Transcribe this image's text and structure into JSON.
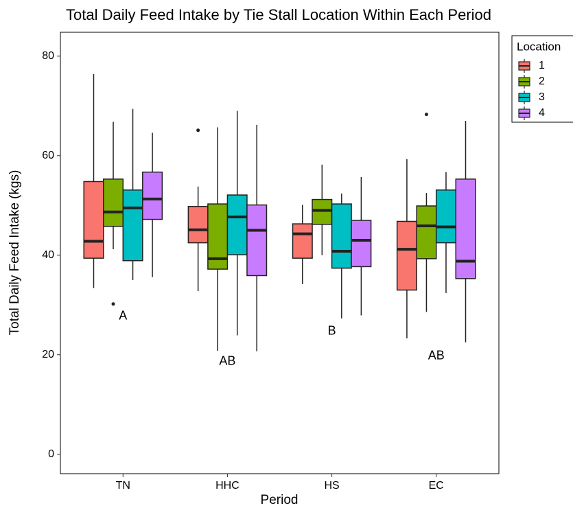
{
  "chart_data": {
    "type": "boxplot",
    "title": "Total Daily Feed Intake by Tie Stall Location Within Each Period",
    "x_label": "Period",
    "y_label": "Total Daily Feed Intake (kgs)",
    "legend_title": "Location",
    "legend_position": "right",
    "categories": [
      "TN",
      "HHC",
      "HS",
      "EC"
    ],
    "ylim": [
      -3.9,
      84.8
    ],
    "yticks": [
      0,
      20,
      40,
      60,
      80
    ],
    "grid": false,
    "series": [
      {
        "name": "1",
        "color": "#F8766D",
        "min": [
          33.4,
          32.8,
          34.2,
          23.3
        ],
        "q1": [
          39.4,
          42.5,
          39.4,
          33.0
        ],
        "median": [
          42.8,
          45.1,
          44.3,
          41.2
        ],
        "q3": [
          54.8,
          49.8,
          46.3,
          46.8
        ],
        "max": [
          76.4,
          53.8,
          50.1,
          59.3
        ],
        "outliers": [
          {
            "x": "HHC",
            "y": 65.1
          }
        ]
      },
      {
        "name": "2",
        "color": "#7CAE00",
        "min": [
          41.2,
          20.8,
          40.0,
          28.6
        ],
        "q1": [
          45.8,
          37.2,
          46.2,
          39.3
        ],
        "median": [
          48.7,
          39.3,
          49.0,
          45.9
        ],
        "q3": [
          55.3,
          50.3,
          51.2,
          49.9
        ],
        "max": [
          66.8,
          65.7,
          58.2,
          52.5
        ],
        "outliers": [
          {
            "x": "TN",
            "y": 30.2
          },
          {
            "x": "EC",
            "y": 68.3
          }
        ]
      },
      {
        "name": "3",
        "color": "#00BFC4",
        "min": [
          35.0,
          23.9,
          27.3,
          32.4
        ],
        "q1": [
          38.9,
          40.1,
          37.4,
          42.5
        ],
        "median": [
          49.5,
          47.7,
          40.8,
          45.7
        ],
        "q3": [
          53.1,
          52.1,
          50.3,
          53.1
        ],
        "max": [
          69.4,
          69.0,
          52.4,
          56.7
        ],
        "outliers": []
      },
      {
        "name": "4",
        "color": "#C77CFF",
        "min": [
          35.6,
          20.7,
          27.9,
          22.5
        ],
        "q1": [
          47.2,
          35.9,
          37.7,
          35.3
        ],
        "median": [
          51.3,
          45.0,
          43.0,
          38.8
        ],
        "q3": [
          56.7,
          50.1,
          47.0,
          55.3
        ],
        "max": [
          64.6,
          66.2,
          55.7,
          67.0
        ],
        "outliers": []
      }
    ],
    "annotations": [
      {
        "label": "A",
        "x": "TN",
        "y": 27.7
      },
      {
        "label": "AB",
        "x": "HHC",
        "y": 18.6
      },
      {
        "label": "B",
        "x": "HS",
        "y": 24.7
      },
      {
        "label": "AB",
        "x": "EC",
        "y": 19.7
      }
    ]
  }
}
